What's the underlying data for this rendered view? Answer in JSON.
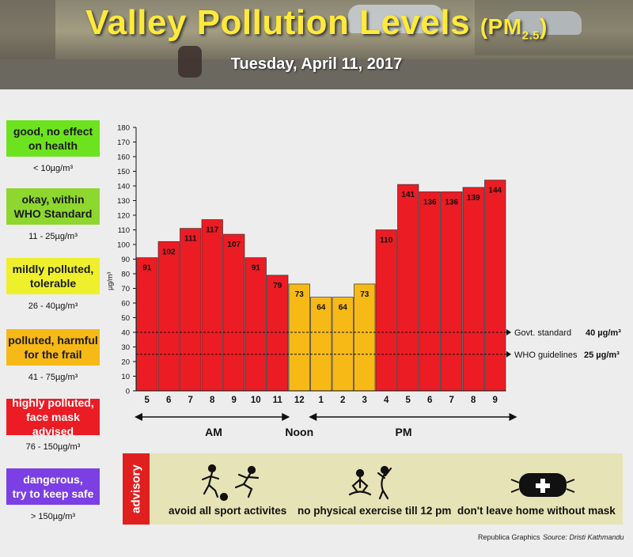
{
  "header": {
    "title_main": "Valley Pollution Levels",
    "title_pm": "(PM",
    "title_sub": "2.5",
    "title_close": ")",
    "date": "Tuesday, April 11, 2017"
  },
  "legend": [
    {
      "label_line1": "good, no effect",
      "label_line2": "on health",
      "range": "< 10µg/m³",
      "color": "#6de21f"
    },
    {
      "label_line1": "okay, within",
      "label_line2": "WHO Standard",
      "range": "11 - 25µg/m³",
      "color": "#8ed72e"
    },
    {
      "label_line1": "mildly polluted,",
      "label_line2": "tolerable",
      "range": "26 - 40µg/m³",
      "color": "#eef02c"
    },
    {
      "label_line1": "polluted, harmful",
      "label_line2": "for the frail",
      "range": "41 - 75µg/m³",
      "color": "#f7b916"
    },
    {
      "label_line1": "highly polluted,",
      "label_line2": "face mask advised",
      "range": "76 - 150µg/m³",
      "color": "#ec1c24"
    },
    {
      "label_line1": "dangerous,",
      "label_line2": "try to keep safe",
      "range": "> 150µg/m³",
      "color": "#7b3fe4"
    }
  ],
  "chart_data": {
    "type": "bar",
    "categories": [
      "5",
      "6",
      "7",
      "8",
      "9",
      "10",
      "11",
      "12",
      "1",
      "2",
      "3",
      "4",
      "5",
      "6",
      "7",
      "8",
      "9"
    ],
    "values": [
      91,
      102,
      111,
      117,
      107,
      91,
      79,
      73,
      64,
      64,
      73,
      110,
      141,
      136,
      136,
      139,
      144
    ],
    "data_labels": [
      "91",
      "102",
      "111",
      "117",
      "107",
      "91",
      "79",
      "73",
      "64",
      "64",
      "73",
      "110",
      "141",
      "136",
      "136",
      "139",
      "144"
    ],
    "ylabel": "µg/m³",
    "ylim": [
      0,
      180
    ],
    "yticks": [
      "0",
      "10",
      "20",
      "30",
      "40",
      "50",
      "60",
      "70",
      "80",
      "90",
      "100",
      "110",
      "120",
      "130",
      "140",
      "150",
      "160",
      "170",
      "180"
    ],
    "colors": {
      "high": "#ec1c24",
      "moderate": "#f7b916"
    },
    "period_labels": {
      "am": "AM",
      "noon": "Noon",
      "pm": "PM"
    },
    "reference_lines": [
      {
        "value": 40,
        "label": "Govt. standard",
        "value_label": "40 µg/m³"
      },
      {
        "value": 25,
        "label": "WHO guidelines",
        "value_label": "25 µg/m³"
      }
    ]
  },
  "advisory": {
    "tab_label": "advisory",
    "items": [
      "avoid all sport activites",
      "no physical exercise till 12 pm",
      "don't leave home without mask"
    ]
  },
  "credits": {
    "graphics": "Republica Graphics",
    "source": "Source: Dristi Kathmandu"
  }
}
